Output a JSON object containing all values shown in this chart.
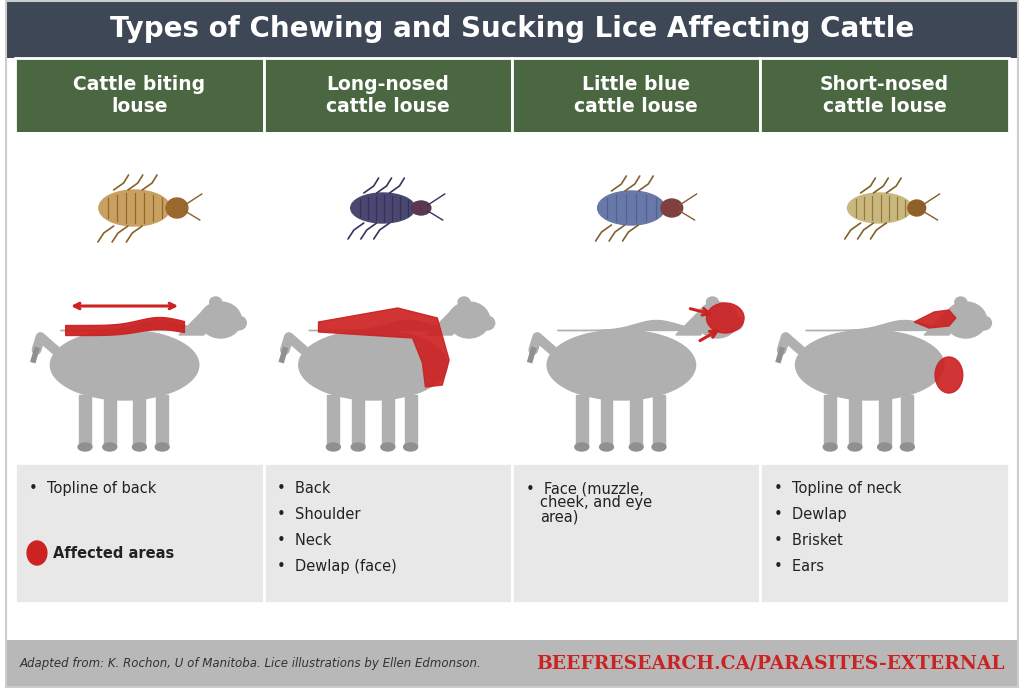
{
  "title": "Types of Chewing and Sucking Lice Affecting Cattle",
  "title_bg": "#3d4755",
  "title_color": "#ffffff",
  "header_bg": "#4a6741",
  "header_color": "#ffffff",
  "content_bg": "#e8e8e8",
  "footer_bg": "#b8b8b8",
  "border_color": "#ffffff",
  "columns": [
    "Cattle biting\nlouse",
    "Long-nosed\ncattle louse",
    "Little blue\ncattle louse",
    "Short-nosed\ncattle louse"
  ],
  "bullet_points": [
    [
      "Topline of back"
    ],
    [
      "Back",
      "Shoulder",
      "Neck",
      "Dewlap (face)"
    ],
    [
      "Face (muzzle,\ncheek, and eye\narea)"
    ],
    [
      "Topline of neck",
      "Dewlap",
      "Brisket",
      "Ears"
    ]
  ],
  "footer_left": "Adapted from: K. Rochon, U of Manitoba. Lice illustrations by Ellen Edmonson.",
  "footer_right": "BEEFRESEARCH.CA/PARASITES-EXTERNAL",
  "footer_right_color": "#cc2222",
  "red_color": "#cc2222",
  "gray_cow": "#b0b0b0",
  "affected_color": "#cc2222",
  "img_bg": "#ffffff",
  "cow_bg": "#ffffff"
}
